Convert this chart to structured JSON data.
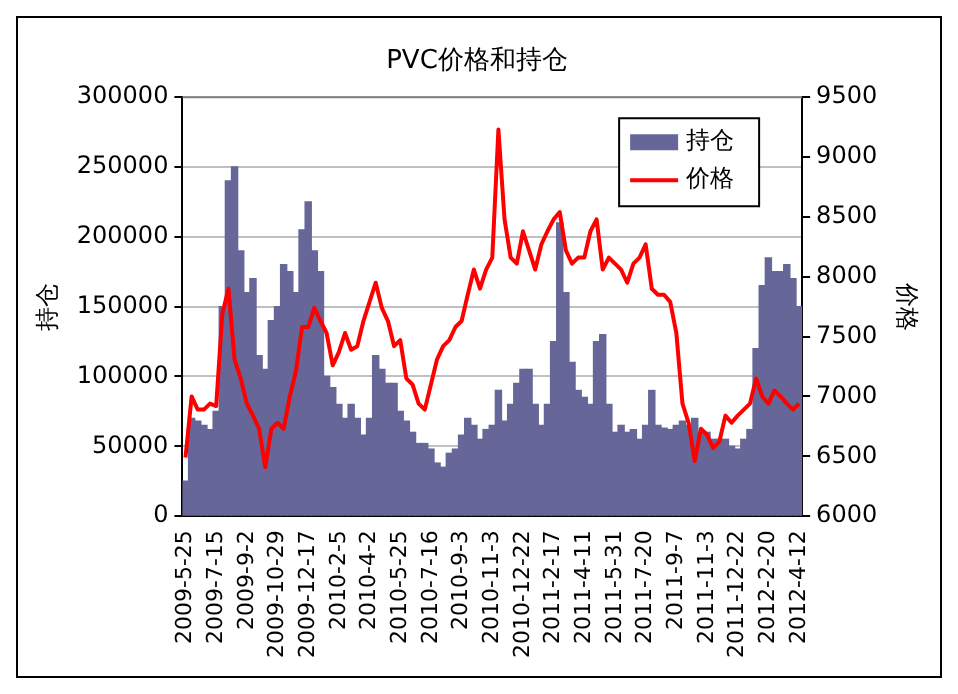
{
  "chart_data": {
    "type": "bar",
    "title": "PVC价格和持仓",
    "ylabel": "持仓",
    "y2label": "价格",
    "categories": [
      "2009-5-25",
      null,
      null,
      null,
      null,
      "2009-7-15",
      null,
      null,
      null,
      null,
      "2009-9-2",
      null,
      null,
      null,
      null,
      "2009-10-29",
      null,
      null,
      null,
      null,
      "2009-12-17",
      null,
      null,
      null,
      null,
      "2010-2-5",
      null,
      null,
      null,
      null,
      "2010-4-2",
      null,
      null,
      null,
      null,
      "2010-5-25",
      null,
      null,
      null,
      null,
      "2010-7-16",
      null,
      null,
      null,
      null,
      "2010-9-3",
      null,
      null,
      null,
      null,
      "2010-11-3",
      null,
      null,
      null,
      null,
      "2010-12-22",
      null,
      null,
      null,
      null,
      "2011-2-17",
      null,
      null,
      null,
      null,
      "2011-4-11",
      null,
      null,
      null,
      null,
      "2011-5-31",
      null,
      null,
      null,
      null,
      "2011-7-20",
      null,
      null,
      null,
      null,
      "2011-9-7",
      null,
      null,
      null,
      null,
      "2011-11-3",
      null,
      null,
      null,
      null,
      "2011-12-22",
      null,
      null,
      null,
      null,
      "2012-2-20",
      null,
      null,
      null,
      null,
      "2012-4-12"
    ],
    "series": [
      {
        "name": "持仓",
        "color": "#666699",
        "values": [
          25000,
          70000,
          68000,
          65000,
          62000,
          75000,
          150000,
          240000,
          250000,
          190000,
          160000,
          170000,
          115000,
          105000,
          140000,
          150000,
          180000,
          175000,
          160000,
          205000,
          225000,
          190000,
          175000,
          100000,
          92000,
          80000,
          70000,
          80000,
          70000,
          58000,
          70000,
          115000,
          105000,
          95000,
          95000,
          75000,
          68000,
          60000,
          52000,
          52000,
          48000,
          38000,
          35000,
          45000,
          48000,
          58000,
          70000,
          65000,
          55000,
          62000,
          65000,
          90000,
          68000,
          80000,
          95000,
          105000,
          105000,
          80000,
          65000,
          80000,
          125000,
          210000,
          160000,
          110000,
          90000,
          85000,
          80000,
          125000,
          130000,
          80000,
          60000,
          65000,
          60000,
          62000,
          55000,
          65000,
          90000,
          65000,
          63000,
          62000,
          65000,
          68000,
          65000,
          70000,
          60000,
          60000,
          55000,
          55000,
          55000,
          50000,
          48000,
          55000,
          62000,
          120000,
          165000,
          185000,
          175000,
          175000,
          180000,
          170000,
          150000
        ]
      },
      {
        "name": "价格",
        "type": "line",
        "axis": "y2",
        "color": "#ff0000",
        "values": [
          6490,
          7000,
          6890,
          6890,
          6940,
          6920,
          7690,
          7900,
          7310,
          7150,
          6940,
          6840,
          6730,
          6410,
          6730,
          6780,
          6730,
          7000,
          7210,
          7580,
          7580,
          7740,
          7630,
          7530,
          7260,
          7370,
          7530,
          7390,
          7420,
          7630,
          7790,
          7950,
          7740,
          7630,
          7420,
          7470,
          7150,
          7100,
          6940,
          6890,
          7100,
          7310,
          7420,
          7470,
          7580,
          7630,
          7850,
          8060,
          7900,
          8060,
          8160,
          9230,
          8480,
          8160,
          8110,
          8380,
          8220,
          8060,
          8270,
          8380,
          8480,
          8540,
          8220,
          8110,
          8160,
          8160,
          8380,
          8480,
          8060,
          8160,
          8110,
          8060,
          7950,
          8110,
          8160,
          8270,
          7900,
          7850,
          7850,
          7790,
          7530,
          6940,
          6780,
          6460,
          6730,
          6680,
          6570,
          6620,
          6840,
          6780,
          6840,
          6890,
          6940,
          7150,
          7000,
          6940,
          7050,
          7000,
          6940,
          6890,
          6940
        ]
      }
    ],
    "ylim": [
      0,
      300000
    ],
    "yticks": [
      0,
      50000,
      100000,
      150000,
      200000,
      250000,
      300000
    ],
    "y2lim": [
      6000,
      9500
    ],
    "y2ticks": [
      6000,
      6500,
      7000,
      7500,
      8000,
      8500,
      9000,
      9500
    ],
    "grid": "y",
    "legend": "top right",
    "marker": "none"
  }
}
